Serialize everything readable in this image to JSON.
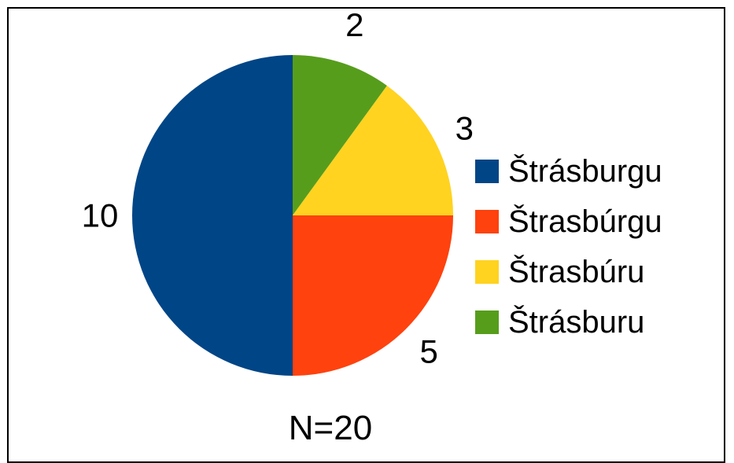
{
  "chart_data": {
    "type": "pie",
    "slices": [
      {
        "label": "Štrásburgu",
        "value": 10,
        "color": "#004586"
      },
      {
        "label": "Štrasbúrgu",
        "value": 5,
        "color": "#ff420e"
      },
      {
        "label": "Štrasbúru",
        "value": 3,
        "color": "#ffd320"
      },
      {
        "label": "Štrásburu",
        "value": 2,
        "color": "#579d1c"
      }
    ],
    "legend_position": "right",
    "caption": "N=20"
  }
}
